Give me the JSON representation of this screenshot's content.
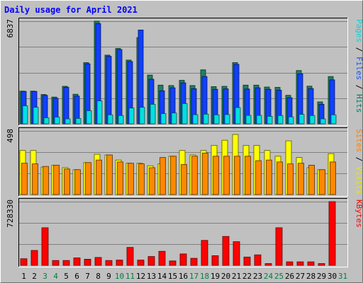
{
  "chart_data": {
    "type": "bar",
    "title": "Daily usage for April 2021",
    "title_color": "#0000ff",
    "days": [
      "1",
      "2",
      "3",
      "4",
      "5",
      "6",
      "7",
      "8",
      "9",
      "10",
      "11",
      "12",
      "13",
      "14",
      "15",
      "16",
      "17",
      "18",
      "19",
      "20",
      "21",
      "22",
      "23",
      "24",
      "25",
      "26",
      "27",
      "28",
      "29",
      "30",
      "31"
    ],
    "weekend_days": [
      3,
      4,
      10,
      11,
      17,
      18,
      24,
      25,
      31
    ],
    "weekday_color": "#000000",
    "weekend_color": "#008040",
    "panels": [
      {
        "name": "traffic",
        "ymax": 6837,
        "ymax_label": "6837",
        "legend": [
          {
            "text": "Pages",
            "color": "#00d8d8"
          },
          {
            "text": " / ",
            "color": "#000000"
          },
          {
            "text": "Files",
            "color": "#1050ff"
          },
          {
            "text": " / ",
            "color": "#000000"
          },
          {
            "text": "Hits",
            "color": "#008060"
          }
        ],
        "series": [
          {
            "name": "Hits",
            "color": "#208060",
            "values": [
              2180,
              2180,
              1950,
              1780,
              2500,
              1970,
              4080,
              6837,
              4580,
              5020,
              4250,
              5750,
              3250,
              2580,
              2550,
              2900,
              2550,
              3600,
              2480,
              2500,
              4080,
              2580,
              2580,
              2450,
              2430,
              1900,
              3550,
              2510,
              1460,
              3150,
              0
            ]
          },
          {
            "name": "Files",
            "color": "#1040ff",
            "values": [
              2160,
              2160,
              1900,
              1700,
              2440,
              1850,
              4000,
              6680,
              4500,
              4950,
              4150,
              6250,
              2970,
              2200,
              2400,
              2730,
              2340,
              3150,
              2300,
              2330,
              3960,
              2320,
              2400,
              2300,
              2240,
              1740,
              3330,
              2350,
              1300,
              2930,
              0
            ]
          },
          {
            "name": "Pages",
            "color": "#00e0e0",
            "values": [
              1200,
              1100,
              400,
              450,
              330,
              360,
              870,
              1530,
              600,
              550,
              1050,
              1100,
              1300,
              680,
              720,
              1350,
              610,
              640,
              600,
              620,
              1080,
              560,
              560,
              500,
              550,
              460,
              630,
              550,
              330,
              600,
              0
            ]
          }
        ]
      },
      {
        "name": "visits",
        "ymax": 498,
        "ymax_label": "498",
        "legend": [
          {
            "text": "Sites",
            "color": "#ff8000"
          },
          {
            "text": " / ",
            "color": "#000000"
          },
          {
            "text": "Visits",
            "color": "#e8e800"
          }
        ],
        "series": [
          {
            "name": "Visits",
            "color": "#ffff00",
            "values": [
              345,
              345,
              215,
              230,
              210,
              195,
              250,
              315,
              310,
              270,
              245,
              245,
              225,
              240,
              300,
              345,
              310,
              345,
              385,
              425,
              470,
              385,
              385,
              345,
              300,
              420,
              290,
              210,
              195,
              320,
              0
            ]
          },
          {
            "name": "Sites",
            "color": "#ff8800",
            "values": [
              245,
              240,
              220,
              230,
              200,
              195,
              250,
              270,
              310,
              255,
              245,
              240,
              210,
              290,
              300,
              235,
              300,
              325,
              300,
              300,
              300,
              300,
              265,
              270,
              255,
              240,
              245,
              230,
              195,
              255,
              0
            ]
          }
        ]
      },
      {
        "name": "kbytes",
        "ymax": 728330,
        "ymax_label": "728330",
        "legend": [
          {
            "text": "KBytes",
            "color": "#ff0000"
          }
        ],
        "series": [
          {
            "name": "KBytes",
            "color": "#ff0000",
            "values": [
              75000,
              170000,
              430000,
              55000,
              55000,
              85000,
              70000,
              90000,
              55000,
              60000,
              205000,
              60000,
              100000,
              160000,
              50000,
              130000,
              80000,
              285000,
              110000,
              330000,
              270000,
              95000,
              120000,
              20000,
              430000,
              40000,
              40000,
              40000,
              20000,
              728330,
              0
            ]
          }
        ]
      }
    ],
    "grid": true
  }
}
